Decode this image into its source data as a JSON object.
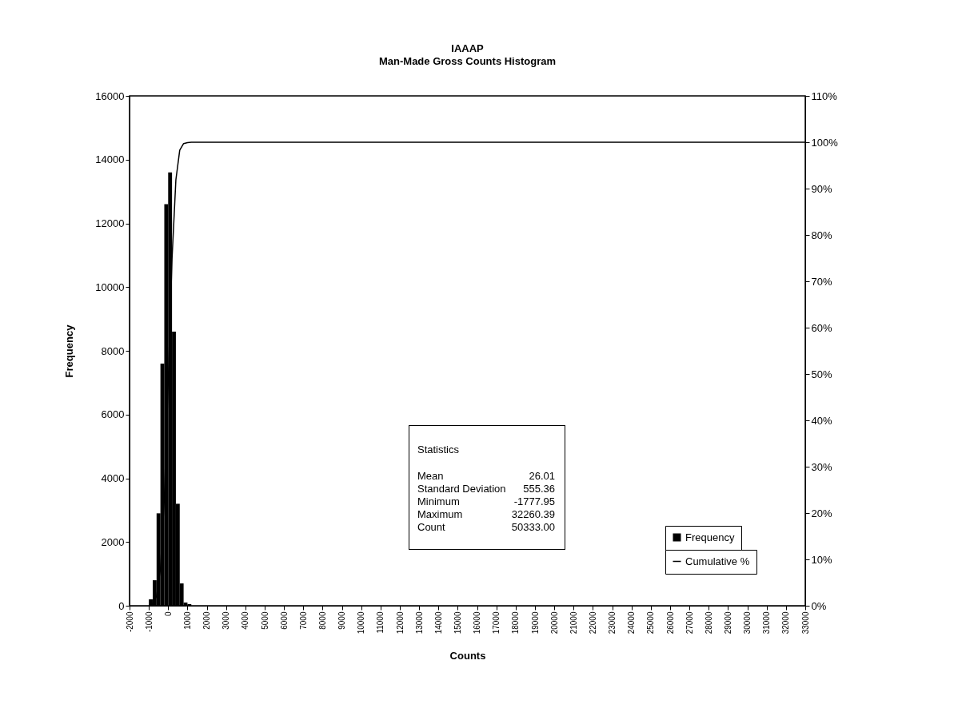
{
  "chart_data": {
    "type": "histogram",
    "title": "IAAAP",
    "subtitle": "Man-Made Gross Counts Histogram",
    "xlabel": "Counts",
    "ylabel": "Frequency",
    "y2label": null,
    "bins": [
      -1000,
      -800,
      -600,
      -400,
      -200,
      0,
      200,
      400,
      600,
      800,
      1000,
      1200
    ],
    "series": [
      {
        "name": "Frequency",
        "color": "#000000",
        "values": [
          200,
          800,
          2900,
          7600,
          12600,
          13600,
          8600,
          3200,
          700,
          100,
          50
        ]
      },
      {
        "name": "Cumulative %",
        "type": "line",
        "axis": "y2",
        "color": "#000000",
        "x": [
          -1000,
          -800,
          -600,
          -400,
          -200,
          0,
          200,
          400,
          600,
          800,
          1000,
          1200,
          2000,
          33000
        ],
        "values": [
          0,
          0.4,
          2.1,
          7.9,
          22.9,
          47.8,
          74.8,
          91.9,
          98.3,
          99.7,
          99.9,
          100,
          100,
          100
        ]
      }
    ],
    "xlim": [
      -2000,
      33000
    ],
    "xticks": [
      -2000,
      -1000,
      0,
      1000,
      2000,
      3000,
      4000,
      5000,
      6000,
      7000,
      8000,
      9000,
      10000,
      11000,
      12000,
      13000,
      14000,
      15000,
      16000,
      17000,
      18000,
      19000,
      20000,
      21000,
      22000,
      23000,
      24000,
      25000,
      26000,
      27000,
      28000,
      29000,
      30000,
      31000,
      32000,
      33000
    ],
    "ylim": [
      0,
      16000
    ],
    "yticks": [
      0,
      2000,
      4000,
      6000,
      8000,
      10000,
      12000,
      14000,
      16000
    ],
    "y2lim": [
      0,
      110
    ],
    "y2ticks": [
      {
        "value": 0,
        "label": "0%"
      },
      {
        "value": 10,
        "label": "10%"
      },
      {
        "value": 20,
        "label": "20%"
      },
      {
        "value": 30,
        "label": "30%"
      },
      {
        "value": 40,
        "label": "40%"
      },
      {
        "value": 50,
        "label": "50%"
      },
      {
        "value": 60,
        "label": "60%"
      },
      {
        "value": 70,
        "label": "70%"
      },
      {
        "value": 80,
        "label": "80%"
      },
      {
        "value": 90,
        "label": "90%"
      },
      {
        "value": 100,
        "label": "100%"
      },
      {
        "value": 110,
        "label": "110%"
      }
    ],
    "legend": "bottom right",
    "grid": false,
    "marker": "none",
    "annotations": [
      "Statistics",
      "Mean",
      "26.01",
      "Standard Deviation",
      "555.36",
      "Minimum",
      "-1777.95",
      "Maximum",
      "32260.39",
      "Count",
      "50333.00"
    ]
  }
}
